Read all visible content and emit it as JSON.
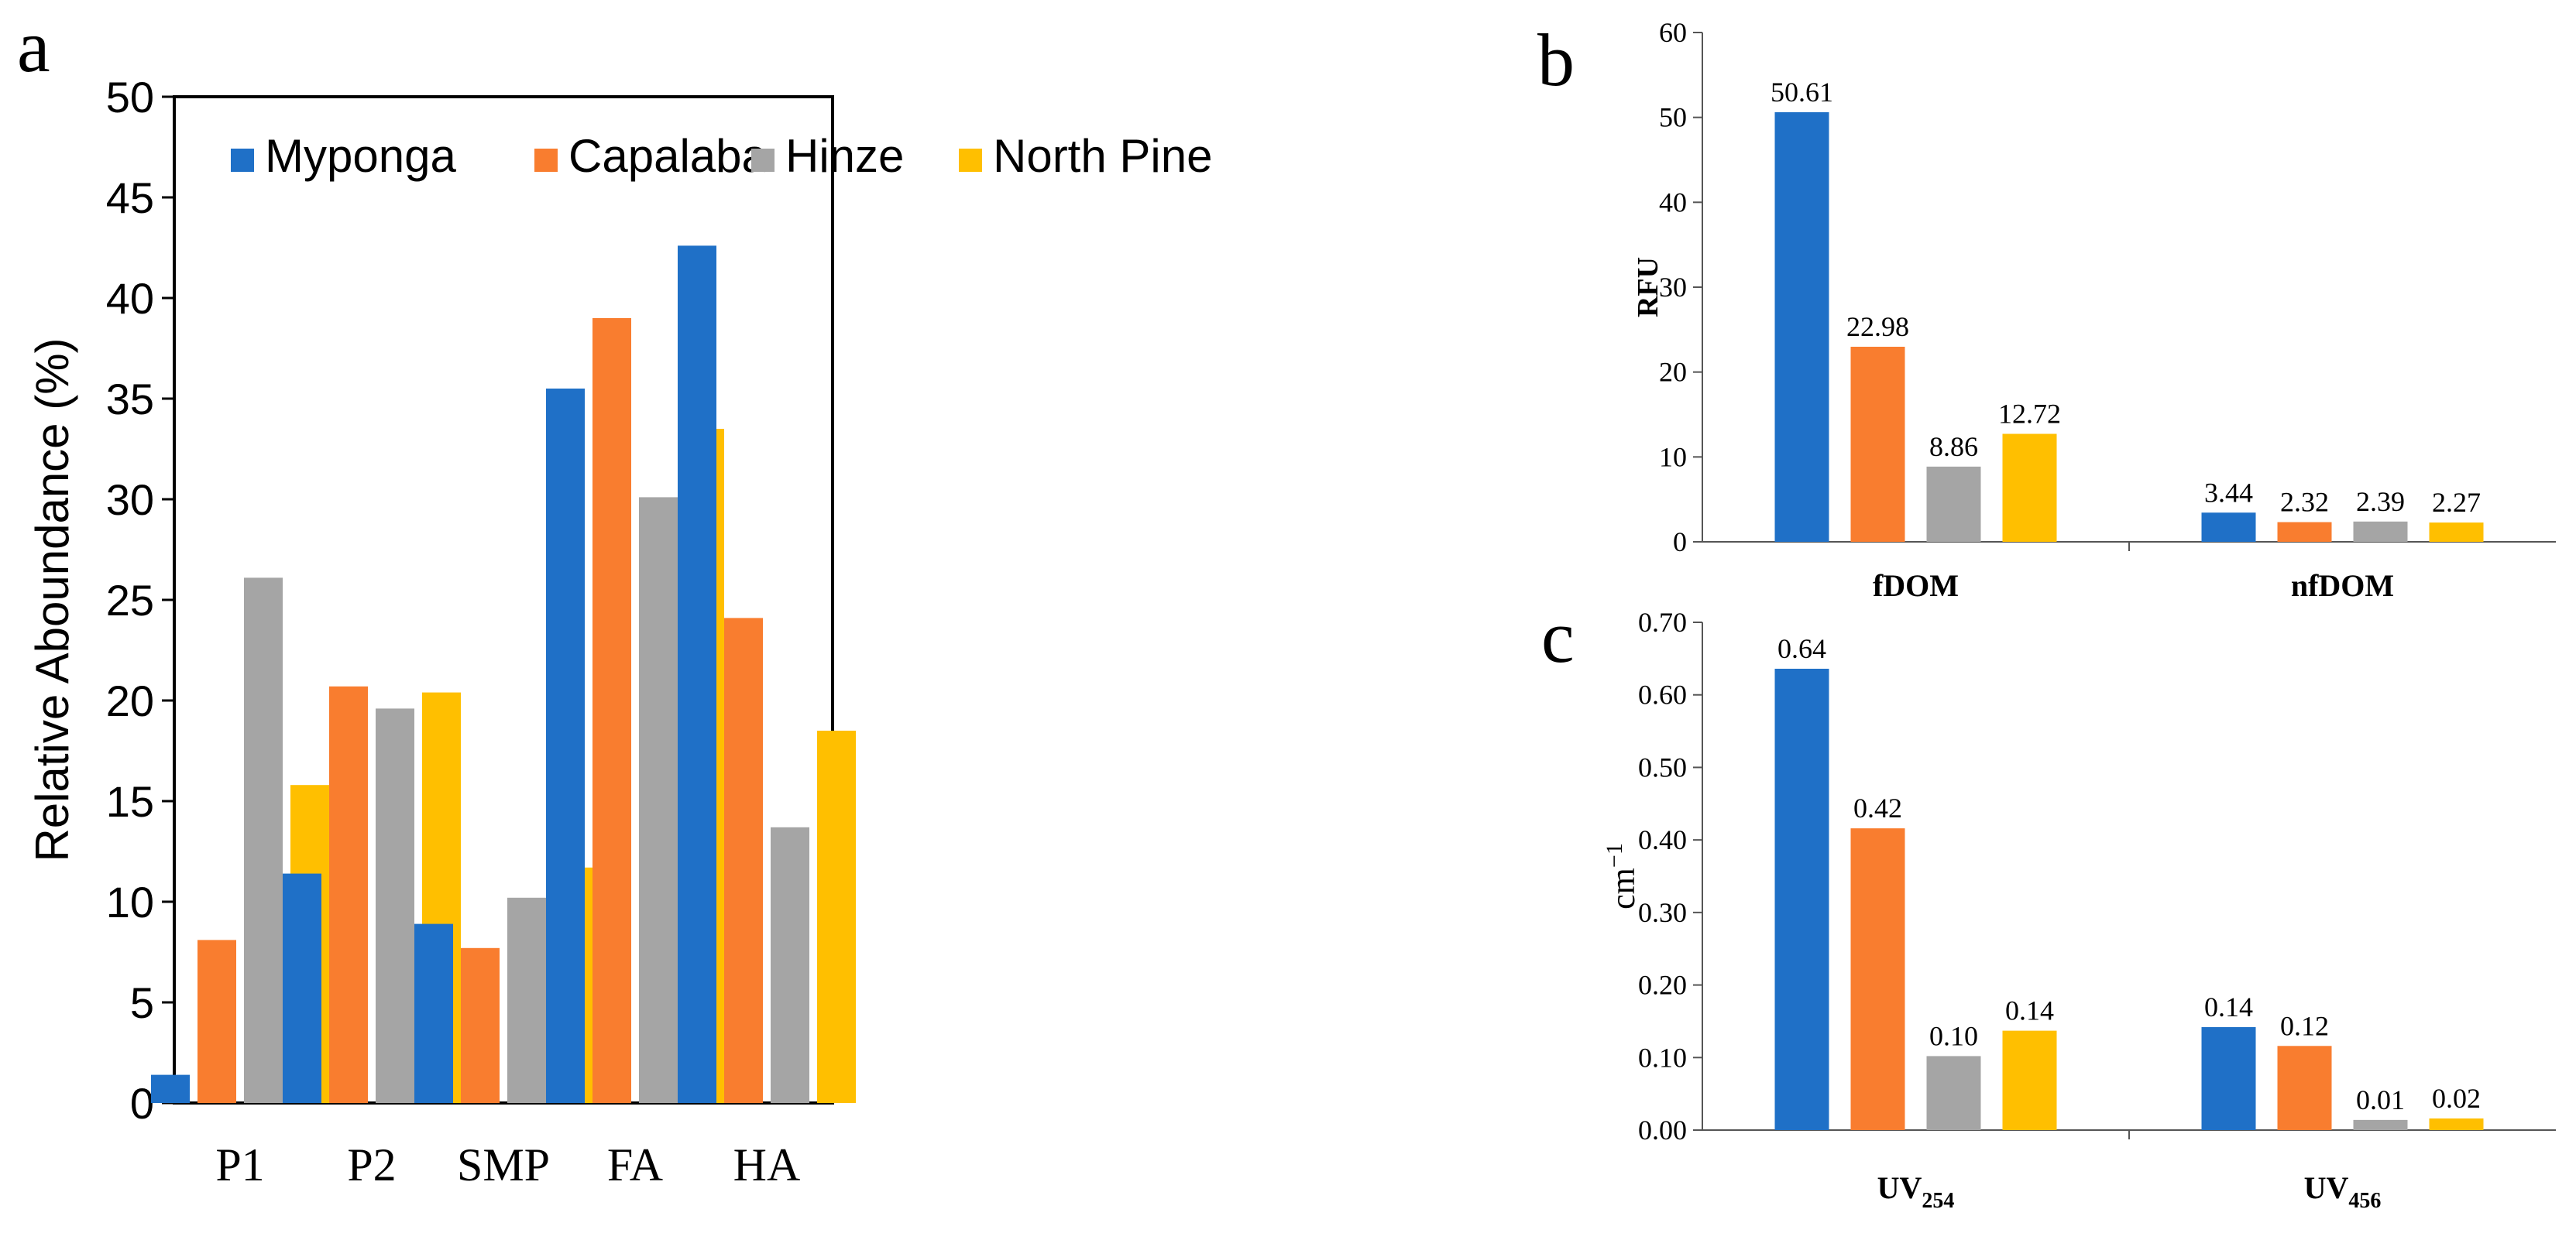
{
  "colors": {
    "Myponga": "#1f70c7",
    "Capalaba": "#f97d2f",
    "Hinze": "#a5a5a5",
    "North Pine": "#ffbf00"
  },
  "series_names": [
    "Myponga",
    "Capalaba",
    "Hinze",
    "North Pine"
  ],
  "chart_data": [
    {
      "panel": "a",
      "type": "bar",
      "title": "",
      "categories": [
        "P1",
        "P2",
        "SMP",
        "FA",
        "HA"
      ],
      "series": [
        {
          "name": "Myponga",
          "values": [
            1.4,
            11.4,
            8.9,
            35.5,
            42.6
          ]
        },
        {
          "name": "Capalaba",
          "values": [
            8.1,
            20.7,
            7.7,
            39.0,
            24.1
          ]
        },
        {
          "name": "Hinze",
          "values": [
            26.1,
            19.6,
            10.2,
            30.1,
            13.7
          ]
        },
        {
          "name": "North Pine",
          "values": [
            15.8,
            20.4,
            11.7,
            33.5,
            18.5
          ]
        }
      ],
      "ylabel": "Relative Aboundance (%)",
      "xlabel": "",
      "ylim": [
        0,
        50
      ],
      "yticks": [
        "0",
        "5",
        "10",
        "15",
        "20",
        "25",
        "30",
        "35",
        "40",
        "45",
        "50"
      ],
      "legend": "top-left, inside",
      "data_labels": false
    },
    {
      "panel": "b",
      "type": "bar",
      "categories": [
        "fDOM",
        "nfDOM"
      ],
      "series": [
        {
          "name": "Myponga",
          "values": [
            50.61,
            3.44
          ]
        },
        {
          "name": "Capalaba",
          "values": [
            22.98,
            2.32
          ]
        },
        {
          "name": "Hinze",
          "values": [
            8.86,
            2.39
          ]
        },
        {
          "name": "North Pine",
          "values": [
            12.72,
            2.27
          ]
        }
      ],
      "value_labels": [
        [
          "50.61",
          "3.44"
        ],
        [
          "22.98",
          "2.32"
        ],
        [
          "8.86",
          "2.39"
        ],
        [
          "12.72",
          "2.27"
        ]
      ],
      "ylabel": "RFU",
      "ylim": [
        0,
        60
      ],
      "yticks": [
        "0",
        "10",
        "20",
        "30",
        "40",
        "50",
        "60"
      ],
      "data_labels": true
    },
    {
      "panel": "c",
      "type": "bar",
      "categories": [
        "UV254",
        "UV456"
      ],
      "category_main": [
        "UV",
        "UV"
      ],
      "category_sub": [
        "254",
        "456"
      ],
      "series": [
        {
          "name": "Myponga",
          "values": [
            0.636,
            0.142
          ]
        },
        {
          "name": "Capalaba",
          "values": [
            0.416,
            0.116
          ]
        },
        {
          "name": "Hinze",
          "values": [
            0.102,
            0.014
          ]
        },
        {
          "name": "North Pine",
          "values": [
            0.137,
            0.016
          ]
        }
      ],
      "value_labels": [
        [
          "0.64",
          "0.14"
        ],
        [
          "0.42",
          "0.12"
        ],
        [
          "0.10",
          "0.01"
        ],
        [
          "0.14",
          "0.02"
        ]
      ],
      "ylabel": "cm−1",
      "ylabel_main": "cm",
      "ylabel_sup": "−1",
      "ylim": [
        0,
        0.7
      ],
      "yticks": [
        "0.00",
        "0.10",
        "0.20",
        "0.30",
        "0.40",
        "0.50",
        "0.60",
        "0.70"
      ],
      "data_labels": true
    }
  ]
}
